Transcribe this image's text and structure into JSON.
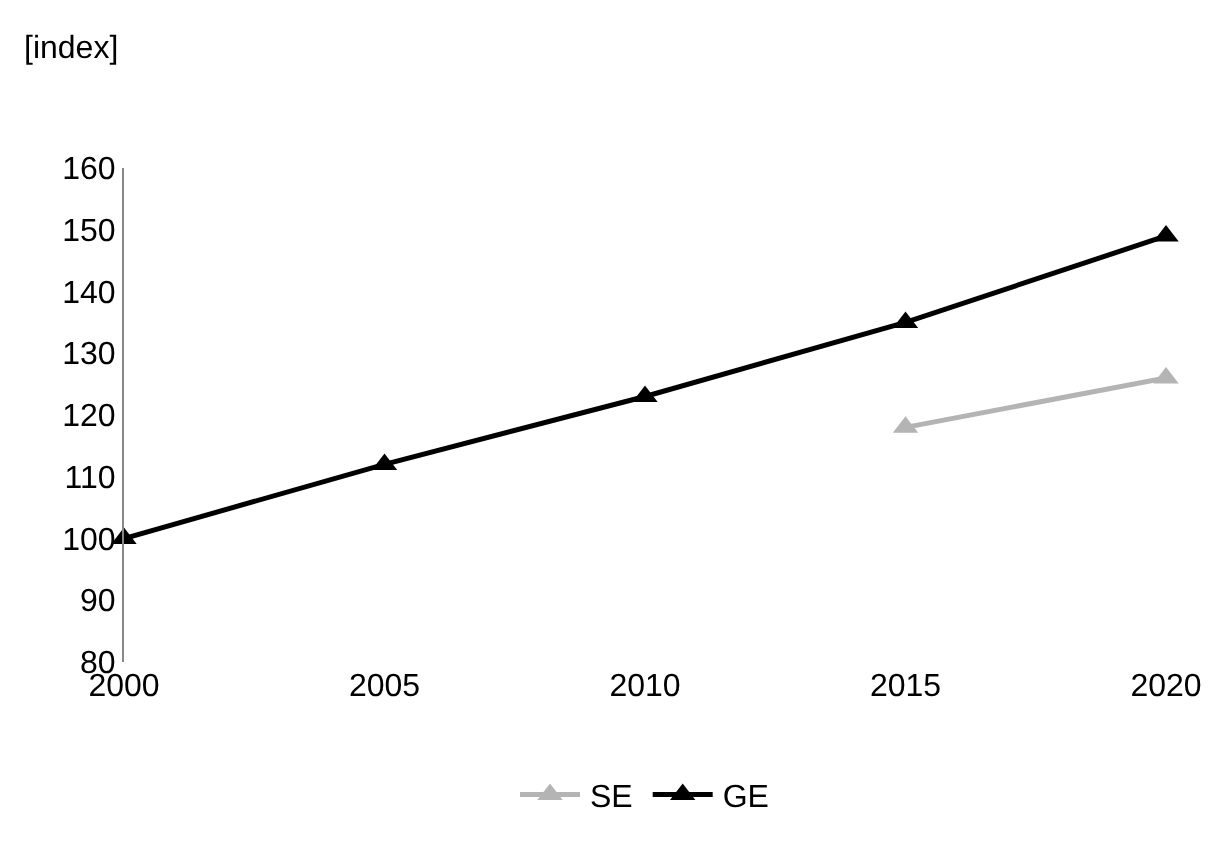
{
  "chart_data": {
    "type": "line",
    "ylabel": "[index]",
    "x": [
      2000,
      2005,
      2010,
      2015,
      2020
    ],
    "series": [
      {
        "name": "SE",
        "color": "#b4b4b4",
        "values": [
          null,
          null,
          null,
          118,
          126
        ]
      },
      {
        "name": "GE",
        "color": "#000000",
        "values": [
          100,
          112,
          123,
          135,
          149
        ]
      }
    ],
    "xlim": [
      2000,
      2020
    ],
    "xticks": [
      2000,
      2005,
      2010,
      2015,
      2020
    ],
    "ylim": [
      80,
      160
    ],
    "yticks": [
      80,
      90,
      100,
      110,
      120,
      130,
      140,
      150,
      160
    ],
    "grid": false,
    "legend": "bottom",
    "marker": "triangle",
    "line_style": "solid"
  }
}
